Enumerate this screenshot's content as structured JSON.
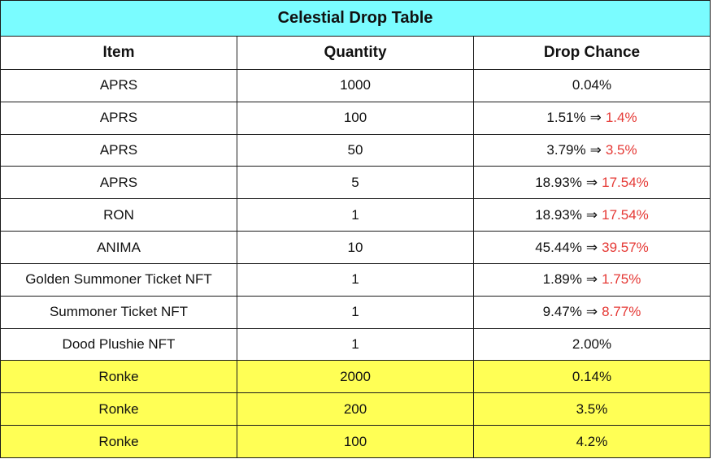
{
  "table": {
    "title": "Celestial Drop Table",
    "headers": [
      "Item",
      "Quantity",
      "Drop Chance"
    ],
    "rows": [
      {
        "item": "APRS",
        "quantity": "1000",
        "chance": "0.04%",
        "new_chance": null,
        "highlight": false
      },
      {
        "item": "APRS",
        "quantity": "100",
        "chance": "1.51%",
        "new_chance": "1.4%",
        "highlight": false
      },
      {
        "item": "APRS",
        "quantity": "50",
        "chance": "3.79%",
        "new_chance": "3.5%",
        "highlight": false
      },
      {
        "item": "APRS",
        "quantity": "5",
        "chance": "18.93%",
        "new_chance": "17.54%",
        "highlight": false
      },
      {
        "item": "RON",
        "quantity": "1",
        "chance": "18.93%",
        "new_chance": "17.54%",
        "highlight": false
      },
      {
        "item": "ANIMA",
        "quantity": "10",
        "chance": "45.44%",
        "new_chance": "39.57%",
        "highlight": false
      },
      {
        "item": "Golden Summoner Ticket NFT",
        "quantity": "1",
        "chance": "1.89%",
        "new_chance": "1.75%",
        "highlight": false
      },
      {
        "item": "Summoner Ticket NFT",
        "quantity": "1",
        "chance": "9.47%",
        "new_chance": "8.77%",
        "highlight": false
      },
      {
        "item": "Dood Plushie NFT",
        "quantity": "1",
        "chance": "2.00%",
        "new_chance": null,
        "highlight": false
      },
      {
        "item": "Ronke",
        "quantity": "2000",
        "chance": "0.14%",
        "new_chance": null,
        "highlight": true
      },
      {
        "item": "Ronke",
        "quantity": "200",
        "chance": "3.5%",
        "new_chance": null,
        "highlight": true
      },
      {
        "item": "Ronke",
        "quantity": "100",
        "chance": "4.2%",
        "new_chance": null,
        "highlight": true
      }
    ],
    "change_arrow": "⇒"
  },
  "colors": {
    "title_background": "#7afcff",
    "header_background": "#ffffff",
    "row_background": "#ffffff",
    "highlight_background": "#ffff55",
    "new_value_color": "#e53935",
    "border": "#1a1a1a"
  }
}
